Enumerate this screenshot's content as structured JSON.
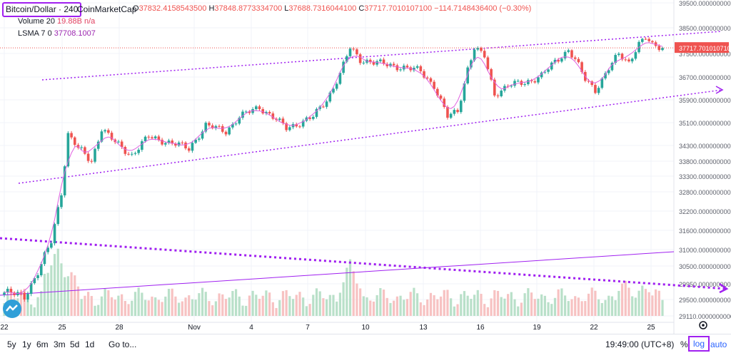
{
  "legend": {
    "symbol": "Bitcoin/Dollar · 240",
    "source": "CoinMarketCap",
    "open_label": "O",
    "open": "37832.4158543500",
    "high_label": "H",
    "high": "37848.8773334700",
    "low_label": "L",
    "low": "37688.7316044100",
    "close_label": "C",
    "close": "37717.7010107100",
    "change": "−114.7148436400 (−0.30%)",
    "vol_name": "Volume 20",
    "vol_value": "19.88B",
    "vol_extra": "n/a",
    "lsma_name": "LSMA 7 0",
    "lsma_value": "37708.1007"
  },
  "price_tag": "37717.7010107100",
  "colors": {
    "up": "#26a69a",
    "down": "#ef5350",
    "vol_up": "#b9e0c9",
    "vol_down": "#f7c2c2",
    "trend": "#a020f0",
    "lsma": "#e060e0",
    "accent": "#2962ff"
  },
  "bottom": {
    "ranges": [
      "5y",
      "1y",
      "6m",
      "3m",
      "5d",
      "1d"
    ],
    "goto": "Go to...",
    "clock": "19:49:00 (UTC+8)",
    "percent": "%",
    "log": "log",
    "auto": "auto"
  },
  "icons": {
    "gear": "gear-icon",
    "logo": "tradingview-logo-icon"
  },
  "chart_data": {
    "type": "candlestick",
    "log_scale": true,
    "grid": true,
    "y_ticks": [
      "39500.0000000000",
      "38500.0000000000",
      "37500.0000000000",
      "36700.0000000000",
      "35900.0000000000",
      "35100.0000000000",
      "34300.0000000000",
      "33800.0000000000",
      "33300.0000000000",
      "32800.0000000000",
      "32200.0000000000",
      "31600.0000000000",
      "31000.0000000000",
      "30500.0000000000",
      "29950.0000000000",
      "29500.0000000000",
      "29110.0000000000"
    ],
    "x_ticks": [
      "22",
      "25",
      "28",
      "Nov",
      "4",
      "7",
      "10",
      "13",
      "16",
      "19",
      "22",
      "25"
    ],
    "anchors": [
      {
        "i": 0,
        "p": 29700
      },
      {
        "i": 6,
        "p": 29600
      },
      {
        "i": 10,
        "p": 30300
      },
      {
        "i": 14,
        "p": 31250
      },
      {
        "i": 17,
        "p": 32800
      },
      {
        "i": 19,
        "p": 34700
      },
      {
        "i": 22,
        "p": 34200
      },
      {
        "i": 26,
        "p": 33800
      },
      {
        "i": 29,
        "p": 34900
      },
      {
        "i": 33,
        "p": 34400
      },
      {
        "i": 38,
        "p": 34000
      },
      {
        "i": 43,
        "p": 34600
      },
      {
        "i": 48,
        "p": 34450
      },
      {
        "i": 55,
        "p": 34200
      },
      {
        "i": 60,
        "p": 35000
      },
      {
        "i": 66,
        "p": 34800
      },
      {
        "i": 70,
        "p": 35300
      },
      {
        "i": 76,
        "p": 35650
      },
      {
        "i": 80,
        "p": 35300
      },
      {
        "i": 84,
        "p": 34900
      },
      {
        "i": 88,
        "p": 35100
      },
      {
        "i": 92,
        "p": 35300
      },
      {
        "i": 96,
        "p": 35900
      },
      {
        "i": 100,
        "p": 36800
      },
      {
        "i": 103,
        "p": 37700
      },
      {
        "i": 106,
        "p": 37300
      },
      {
        "i": 112,
        "p": 37150
      },
      {
        "i": 118,
        "p": 37050
      },
      {
        "i": 124,
        "p": 36900
      },
      {
        "i": 128,
        "p": 36400
      },
      {
        "i": 132,
        "p": 35300
      },
      {
        "i": 135,
        "p": 35500
      },
      {
        "i": 138,
        "p": 37000
      },
      {
        "i": 140,
        "p": 37700
      },
      {
        "i": 143,
        "p": 37400
      },
      {
        "i": 146,
        "p": 36100
      },
      {
        "i": 150,
        "p": 36400
      },
      {
        "i": 155,
        "p": 36500
      },
      {
        "i": 160,
        "p": 36750
      },
      {
        "i": 164,
        "p": 37200
      },
      {
        "i": 168,
        "p": 37650
      },
      {
        "i": 170,
        "p": 37300
      },
      {
        "i": 173,
        "p": 36600
      },
      {
        "i": 176,
        "p": 36250
      },
      {
        "i": 180,
        "p": 37000
      },
      {
        "i": 183,
        "p": 37450
      },
      {
        "i": 186,
        "p": 37200
      },
      {
        "i": 189,
        "p": 37900
      },
      {
        "i": 191,
        "p": 38100
      },
      {
        "i": 193,
        "p": 37800
      },
      {
        "i": 196,
        "p": 37717
      }
    ],
    "candles": 197,
    "last_price": 37717.7
  }
}
